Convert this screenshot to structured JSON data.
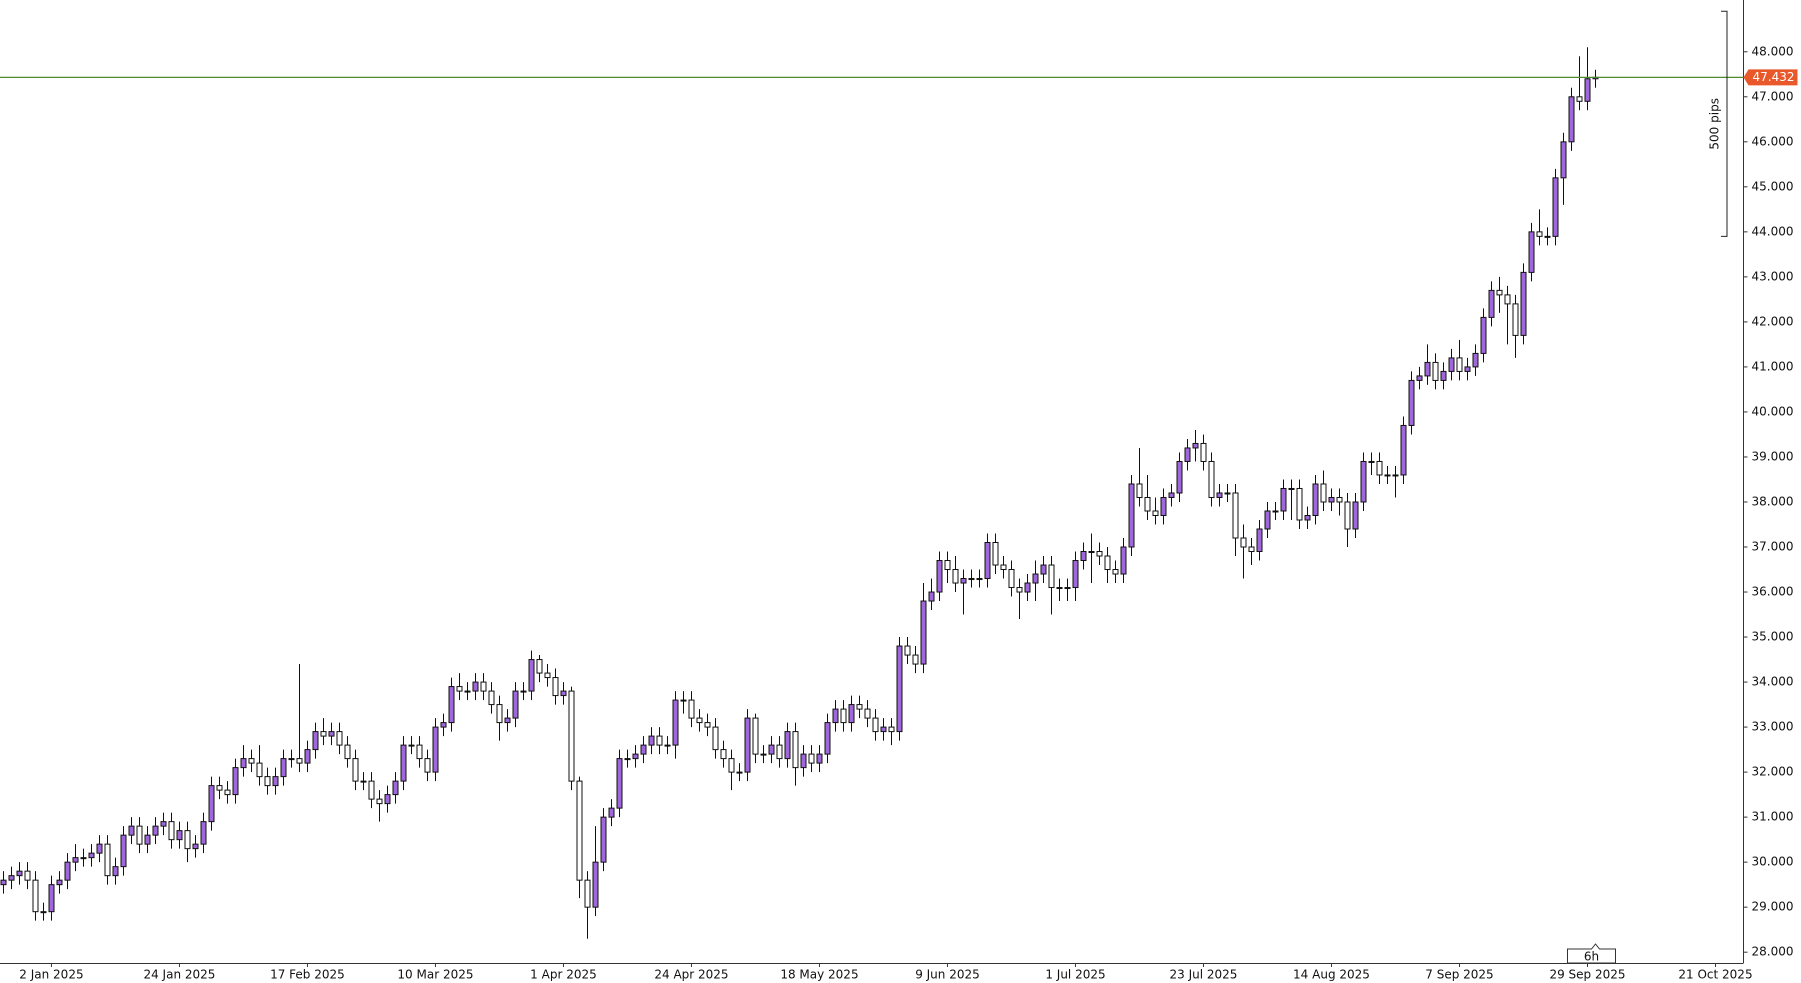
{
  "chart_data": {
    "type": "candlestick",
    "bull_color": "#a066dc",
    "bear_color": "#ffffff",
    "price_line_color": "#4e8a2e",
    "price_label_color": "#e8582a",
    "current_price": 47.432,
    "timeframe": "6h",
    "pips_ruler": {
      "label": "500 pips",
      "from": 43.9,
      "to": 48.9
    },
    "open": [
      29.5,
      29.6,
      29.7,
      29.8,
      29.6,
      28.9,
      28.9,
      29.5,
      29.6,
      30.0,
      30.1,
      30.1,
      30.2,
      30.4,
      29.7,
      29.9,
      30.6,
      30.8,
      30.4,
      30.6,
      30.8,
      30.9,
      30.5,
      30.7,
      30.3,
      30.4,
      30.9,
      31.7,
      31.6,
      31.5,
      32.1,
      32.3,
      32.2,
      31.9,
      31.7,
      31.9,
      32.3,
      32.3,
      32.2,
      32.5,
      32.9,
      32.8,
      32.9,
      32.6,
      32.3,
      31.8,
      31.8,
      31.4,
      31.3,
      31.5,
      31.8,
      32.6,
      32.6,
      32.3,
      32.0,
      33.0,
      33.1,
      33.9,
      33.8,
      33.8,
      34.0,
      33.8,
      33.5,
      33.1,
      33.2,
      33.8,
      33.8,
      34.5,
      34.2,
      34.1,
      33.7,
      33.8,
      31.8,
      29.6,
      29.0,
      30.0,
      31.0,
      31.2,
      32.3,
      32.3,
      32.4,
      32.6,
      32.8,
      32.6,
      32.6,
      33.6,
      33.6,
      33.2,
      33.1,
      33.0,
      32.5,
      32.3,
      32.0,
      32.0,
      33.2,
      32.4,
      32.4,
      32.6,
      32.3,
      32.9,
      32.1,
      32.4,
      32.2,
      32.4,
      33.1,
      33.4,
      33.1,
      33.5,
      33.4,
      33.2,
      32.9,
      33.0,
      32.9,
      34.8,
      34.6,
      34.4,
      35.8,
      36.0,
      36.7,
      36.5,
      36.2,
      36.3,
      36.3,
      36.3,
      37.1,
      36.6,
      36.5,
      36.1,
      36.0,
      36.2,
      36.4,
      36.6,
      36.1,
      36.1,
      36.1,
      36.7,
      36.9,
      36.9,
      36.8,
      36.5,
      36.4,
      37.0,
      38.4,
      38.1,
      37.8,
      37.7,
      38.1,
      38.2,
      38.9,
      39.2,
      39.3,
      38.9,
      38.1,
      38.2,
      38.2,
      37.2,
      37.0,
      36.9,
      37.4,
      37.8,
      37.8,
      38.3,
      38.3,
      37.6,
      37.7,
      38.4,
      38.0,
      38.1,
      38.0,
      37.4,
      38.0,
      38.9,
      38.9,
      38.6,
      38.6,
      38.6,
      39.7,
      40.7,
      40.8,
      41.1,
      40.7,
      40.9,
      41.2,
      40.9,
      41.0,
      41.3,
      42.1,
      42.7,
      42.6,
      42.4,
      41.7,
      43.1,
      44.0,
      43.9,
      43.9,
      45.2,
      46.0,
      47.0,
      46.9,
      47.4
    ],
    "high": [
      29.8,
      29.9,
      30.0,
      30.0,
      29.8,
      29.1,
      29.7,
      29.8,
      30.2,
      30.4,
      30.3,
      30.4,
      30.6,
      30.6,
      30.1,
      30.8,
      31.0,
      31.0,
      30.8,
      31.0,
      31.1,
      31.1,
      30.9,
      30.9,
      30.6,
      31.1,
      31.9,
      31.9,
      31.8,
      32.3,
      32.6,
      32.5,
      32.6,
      32.1,
      32.1,
      32.5,
      32.5,
      34.4,
      32.7,
      33.1,
      33.2,
      33.1,
      33.1,
      32.8,
      32.5,
      32.0,
      32.0,
      31.6,
      31.7,
      32.0,
      32.8,
      32.8,
      32.8,
      32.5,
      33.2,
      33.3,
      34.1,
      34.2,
      34.0,
      34.2,
      34.2,
      34.0,
      33.7,
      33.4,
      34.0,
      34.0,
      34.7,
      34.6,
      34.4,
      34.3,
      34.0,
      33.9,
      31.9,
      29.8,
      30.8,
      31.2,
      31.4,
      32.5,
      32.5,
      32.6,
      32.8,
      33.0,
      33.0,
      32.8,
      33.8,
      33.8,
      33.8,
      33.4,
      33.3,
      33.2,
      32.7,
      32.5,
      32.2,
      33.4,
      33.3,
      32.6,
      32.8,
      32.8,
      33.1,
      33.1,
      32.6,
      32.6,
      32.6,
      33.3,
      33.6,
      33.6,
      33.7,
      33.7,
      33.6,
      33.4,
      33.2,
      33.2,
      35.0,
      35.0,
      34.8,
      36.2,
      36.3,
      36.9,
      36.9,
      36.8,
      36.5,
      36.5,
      36.5,
      37.3,
      37.3,
      36.8,
      36.7,
      36.3,
      36.4,
      36.7,
      36.8,
      36.8,
      36.3,
      36.3,
      36.9,
      37.1,
      37.3,
      37.1,
      37.0,
      36.7,
      37.2,
      38.6,
      39.2,
      38.6,
      38.1,
      38.3,
      38.4,
      39.1,
      39.4,
      39.6,
      39.5,
      39.1,
      38.4,
      38.4,
      38.4,
      37.5,
      37.2,
      37.6,
      38.0,
      38.0,
      38.5,
      38.5,
      38.5,
      37.9,
      38.6,
      38.7,
      38.3,
      38.3,
      38.2,
      38.2,
      39.1,
      39.1,
      39.1,
      38.8,
      38.8,
      39.9,
      40.9,
      41.0,
      41.5,
      41.3,
      41.1,
      41.4,
      41.6,
      41.2,
      41.5,
      42.3,
      42.9,
      43.0,
      42.8,
      42.6,
      43.3,
      44.2,
      44.5,
      44.1,
      45.4,
      46.2,
      47.2,
      47.9,
      48.1,
      47.6
    ],
    "low": [
      29.3,
      29.4,
      29.5,
      29.4,
      28.7,
      28.7,
      28.7,
      29.3,
      29.4,
      29.8,
      29.9,
      29.9,
      30.0,
      29.5,
      29.5,
      29.7,
      30.4,
      30.2,
      30.2,
      30.4,
      30.6,
      30.3,
      30.3,
      30.0,
      30.1,
      30.2,
      30.7,
      31.4,
      31.3,
      31.3,
      31.9,
      32.0,
      31.7,
      31.5,
      31.5,
      31.7,
      32.1,
      32.0,
      32.0,
      32.3,
      32.6,
      32.6,
      32.4,
      32.1,
      31.6,
      31.6,
      31.2,
      30.9,
      31.1,
      31.3,
      31.6,
      32.4,
      32.1,
      31.8,
      31.8,
      32.8,
      32.9,
      33.6,
      33.6,
      33.6,
      33.6,
      33.3,
      32.7,
      32.9,
      33.0,
      33.6,
      33.6,
      34.0,
      33.9,
      33.5,
      33.5,
      31.6,
      29.2,
      28.3,
      28.8,
      29.8,
      30.8,
      31.0,
      32.1,
      32.1,
      32.2,
      32.4,
      32.4,
      32.4,
      32.3,
      33.3,
      33.0,
      32.9,
      32.8,
      32.3,
      32.1,
      31.6,
      31.8,
      31.8,
      32.2,
      32.2,
      32.2,
      32.1,
      32.1,
      31.7,
      31.9,
      32.0,
      32.0,
      32.2,
      32.9,
      32.9,
      32.9,
      33.2,
      33.0,
      32.7,
      32.7,
      32.6,
      32.7,
      34.4,
      34.2,
      34.2,
      35.6,
      35.8,
      36.2,
      36.0,
      35.5,
      36.1,
      36.1,
      36.1,
      36.4,
      36.3,
      35.9,
      35.4,
      35.8,
      35.8,
      36.2,
      35.5,
      35.8,
      35.8,
      35.8,
      36.5,
      36.2,
      36.6,
      36.2,
      36.2,
      36.2,
      36.8,
      37.9,
      37.6,
      37.5,
      37.5,
      37.9,
      38.0,
      38.7,
      38.9,
      38.7,
      37.9,
      37.9,
      38.0,
      36.8,
      36.3,
      36.6,
      36.7,
      37.2,
      37.6,
      37.6,
      37.6,
      37.4,
      37.4,
      37.5,
      37.8,
      37.8,
      37.7,
      37.0,
      37.2,
      37.8,
      38.6,
      38.4,
      38.4,
      38.1,
      38.4,
      39.5,
      40.5,
      40.6,
      40.5,
      40.5,
      40.7,
      40.7,
      40.7,
      40.8,
      41.1,
      41.9,
      42.2,
      41.5,
      41.2,
      41.5,
      42.9,
      43.7,
      43.7,
      43.7,
      44.6,
      45.8,
      46.7,
      46.7,
      47.2
    ],
    "close": [
      29.6,
      29.7,
      29.8,
      29.6,
      28.9,
      28.9,
      29.5,
      29.6,
      30.0,
      30.1,
      30.1,
      30.2,
      30.4,
      29.7,
      29.9,
      30.6,
      30.8,
      30.4,
      30.6,
      30.8,
      30.9,
      30.5,
      30.7,
      30.3,
      30.4,
      30.9,
      31.7,
      31.6,
      31.5,
      32.1,
      32.3,
      32.2,
      31.9,
      31.7,
      31.9,
      32.3,
      32.3,
      32.2,
      32.5,
      32.9,
      32.8,
      32.9,
      32.6,
      32.3,
      31.8,
      31.8,
      31.4,
      31.3,
      31.5,
      31.8,
      32.6,
      32.6,
      32.3,
      32.0,
      33.0,
      33.1,
      33.9,
      33.8,
      33.8,
      34.0,
      33.8,
      33.5,
      33.1,
      33.2,
      33.8,
      33.8,
      34.5,
      34.2,
      34.1,
      33.7,
      33.8,
      31.8,
      29.6,
      29.0,
      30.0,
      31.0,
      31.2,
      32.3,
      32.3,
      32.4,
      32.6,
      32.8,
      32.6,
      32.6,
      33.6,
      33.6,
      33.2,
      33.1,
      33.0,
      32.5,
      32.3,
      32.0,
      32.0,
      33.2,
      32.4,
      32.4,
      32.6,
      32.3,
      32.9,
      32.1,
      32.4,
      32.2,
      32.4,
      33.1,
      33.4,
      33.1,
      33.5,
      33.4,
      33.2,
      32.9,
      33.0,
      32.9,
      34.8,
      34.6,
      34.4,
      35.8,
      36.0,
      36.7,
      36.5,
      36.2,
      36.3,
      36.3,
      36.3,
      37.1,
      36.6,
      36.5,
      36.1,
      36.0,
      36.2,
      36.4,
      36.6,
      36.1,
      36.1,
      36.1,
      36.7,
      36.9,
      36.9,
      36.8,
      36.5,
      36.4,
      37.0,
      38.4,
      38.1,
      37.8,
      37.7,
      38.1,
      38.2,
      38.9,
      39.2,
      39.3,
      38.9,
      38.1,
      38.2,
      38.2,
      37.2,
      37.0,
      36.9,
      37.4,
      37.8,
      37.8,
      38.3,
      38.3,
      37.6,
      37.7,
      38.4,
      38.0,
      38.1,
      38.0,
      37.4,
      38.0,
      38.9,
      38.9,
      38.6,
      38.6,
      38.6,
      39.7,
      40.7,
      40.8,
      41.1,
      40.7,
      40.9,
      41.2,
      40.9,
      41.0,
      41.3,
      42.1,
      42.7,
      42.6,
      42.4,
      41.7,
      43.1,
      44.0,
      43.9,
      43.9,
      45.2,
      46.0,
      47.0,
      46.9,
      47.4,
      47.432
    ],
    "xlim": [
      -0.43,
      217.5
    ],
    "xticks": [
      {
        "value": 6,
        "label": "2 Jan 2025"
      },
      {
        "value": 22,
        "label": "24 Jan 2025"
      },
      {
        "value": 38,
        "label": "17 Feb 2025"
      },
      {
        "value": 54,
        "label": "10 Mar 2025"
      },
      {
        "value": 70,
        "label": "1 Apr 2025"
      },
      {
        "value": 86,
        "label": "24 Apr 2025"
      },
      {
        "value": 102,
        "label": "18 May 2025"
      },
      {
        "value": 118,
        "label": "9 Jun 2025"
      },
      {
        "value": 134,
        "label": "1 Jul 2025"
      },
      {
        "value": 150,
        "label": "23 Jul 2025"
      },
      {
        "value": 166,
        "label": "14 Aug 2025"
      },
      {
        "value": 182,
        "label": "7 Sep 2025"
      },
      {
        "value": 198,
        "label": "29 Sep 2025"
      },
      {
        "value": 214,
        "label": "21 Oct 2025"
      }
    ],
    "ylim": [
      27.76,
      49.15
    ],
    "yticks": [
      {
        "value": 28,
        "label": "28.000"
      },
      {
        "value": 29,
        "label": "29.000"
      },
      {
        "value": 30,
        "label": "30.000"
      },
      {
        "value": 31,
        "label": "31.000"
      },
      {
        "value": 32,
        "label": "32.000"
      },
      {
        "value": 33,
        "label": "33.000"
      },
      {
        "value": 34,
        "label": "34.000"
      },
      {
        "value": 35,
        "label": "35.000"
      },
      {
        "value": 36,
        "label": "36.000"
      },
      {
        "value": 37,
        "label": "37.000"
      },
      {
        "value": 38,
        "label": "38.000"
      },
      {
        "value": 39,
        "label": "39.000"
      },
      {
        "value": 40,
        "label": "40.000"
      },
      {
        "value": 41,
        "label": "41.000"
      },
      {
        "value": 42,
        "label": "42.000"
      },
      {
        "value": 43,
        "label": "43.000"
      },
      {
        "value": 44,
        "label": "44.000"
      },
      {
        "value": 45,
        "label": "45.000"
      },
      {
        "value": 46,
        "label": "46.000"
      },
      {
        "value": 47,
        "label": "47.000"
      },
      {
        "value": 48,
        "label": "48.000"
      }
    ]
  }
}
